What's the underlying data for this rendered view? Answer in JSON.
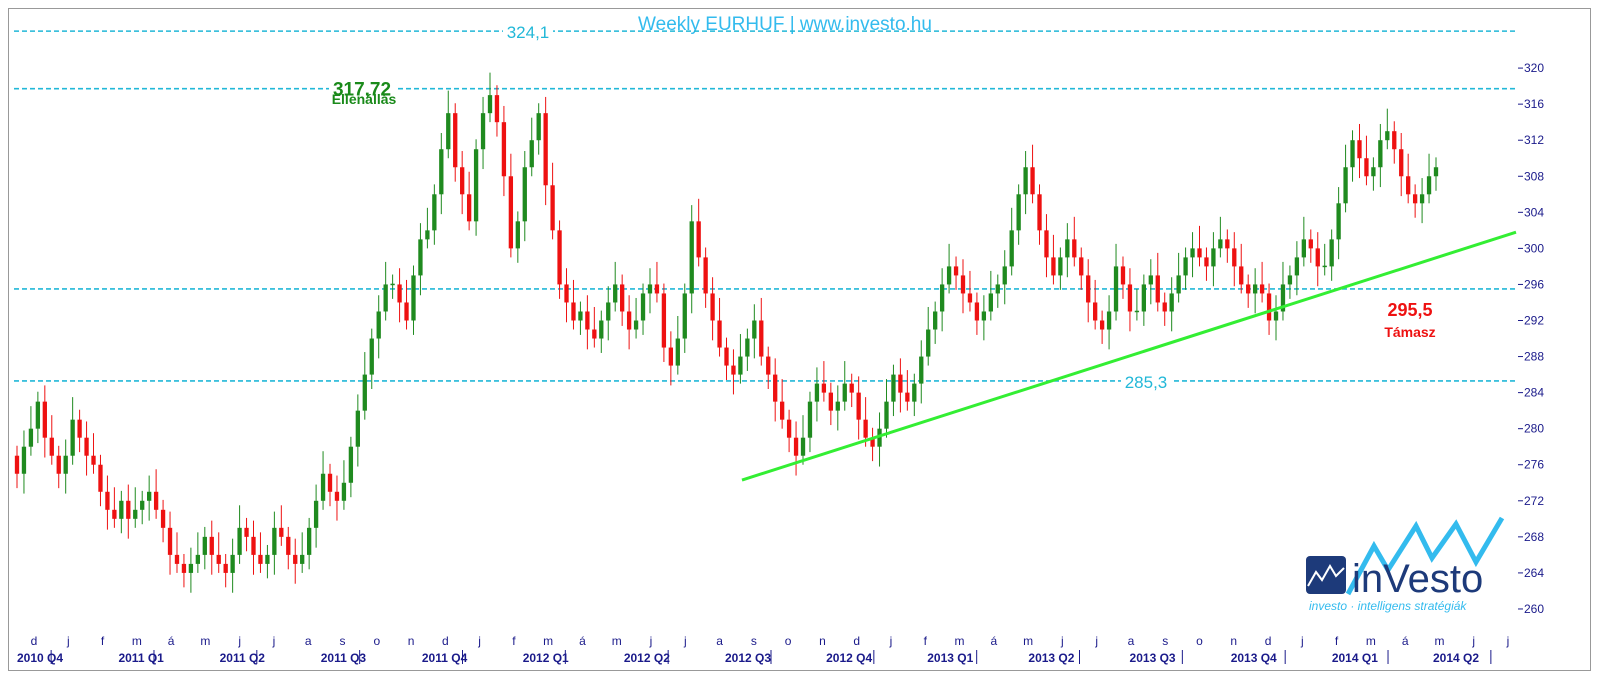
{
  "chart_data": {
    "type": "candlestick",
    "title": "Weekly EURHUF | www.investo.hu",
    "ylim": [
      258,
      326
    ],
    "y_ticks": [
      320,
      316,
      312,
      308,
      304,
      300,
      296,
      292,
      288,
      284,
      280,
      276,
      272,
      268,
      264,
      260
    ],
    "grid": false,
    "colors": {
      "up": "#1f8a1f",
      "down": "#ee1111",
      "level": "#22b8d8",
      "trend": "#33ee33",
      "title": "#33bbee",
      "axis": "#1a1a8a"
    },
    "months": [
      "d",
      "j",
      "f",
      "m",
      "á",
      "m",
      "j",
      "j",
      "a",
      "s",
      "o",
      "n",
      "d",
      "j",
      "f",
      "m",
      "á",
      "m",
      "j",
      "j",
      "a",
      "s",
      "o",
      "n",
      "d",
      "j",
      "f",
      "m",
      "á",
      "m",
      "j",
      "j",
      "a",
      "s",
      "o",
      "n",
      "d",
      "j",
      "f",
      "m",
      "á",
      "m",
      "j",
      "j"
    ],
    "quarters": [
      "2010 Q4",
      "2011 Q1",
      "2011 Q2",
      "2011 Q3",
      "2011 Q4",
      "2012 Q1",
      "2012 Q2",
      "2012 Q3",
      "2012 Q4",
      "2013 Q1",
      "2013 Q2",
      "2013 Q3",
      "2013 Q4",
      "2014 Q1",
      "2014 Q2"
    ],
    "levels": [
      {
        "value": 324.1,
        "label": "324,1"
      },
      {
        "value": 317.72,
        "label": "317,72"
      },
      {
        "value": 295.5,
        "label": ""
      },
      {
        "value": 285.3,
        "label": "285,3"
      }
    ],
    "annotations": {
      "resistance_name": "Ellenállás",
      "resistance_value": "317,72",
      "support_value": "295,5",
      "support_name": "Támasz"
    },
    "trendline": {
      "from": {
        "week": 0,
        "value": 274.3
      },
      "to": {
        "week": 1,
        "value": 301.8
      }
    },
    "closes": [
      275,
      278,
      280,
      283,
      279,
      277,
      275,
      277,
      281,
      279,
      277,
      276,
      273,
      271,
      270,
      272,
      270,
      271,
      272,
      273,
      271,
      269,
      266,
      265,
      264,
      265,
      266,
      268,
      266,
      265,
      264,
      266,
      269,
      268,
      266,
      265,
      266,
      269,
      268,
      266,
      265,
      266,
      269,
      272,
      275,
      273,
      272,
      274,
      278,
      282,
      286,
      290,
      293,
      296,
      296,
      294,
      292,
      297,
      301,
      302,
      306,
      311,
      315,
      309,
      306,
      303,
      311,
      315,
      317,
      314,
      308,
      300,
      303,
      309,
      312,
      315,
      307,
      302,
      296,
      294,
      292,
      293,
      291,
      290,
      292,
      294,
      296,
      293,
      291,
      292,
      295,
      296,
      295,
      289,
      287,
      290,
      295,
      303,
      299,
      295,
      292,
      289,
      287,
      286,
      288,
      290,
      292,
      288,
      286,
      283,
      281,
      279,
      277,
      279,
      283,
      285,
      284,
      282,
      283,
      285,
      284,
      281,
      279,
      278,
      280,
      283,
      286,
      284,
      283,
      285,
      288,
      291,
      293,
      296,
      298,
      297,
      295,
      294,
      292,
      293,
      295,
      296,
      298,
      302,
      306,
      309,
      306,
      302,
      299,
      297,
      299,
      301,
      299,
      297,
      294,
      292,
      291,
      293,
      298,
      296,
      293,
      293,
      296,
      297,
      294,
      293,
      295,
      297,
      299,
      300,
      299,
      298,
      300,
      301,
      300,
      298,
      296,
      295,
      296,
      295,
      292,
      293,
      296,
      297,
      299,
      301,
      300,
      298,
      298,
      301,
      305,
      309,
      312,
      310,
      308,
      309,
      312,
      313,
      311,
      308,
      306,
      305,
      306,
      308,
      309
    ]
  }
}
